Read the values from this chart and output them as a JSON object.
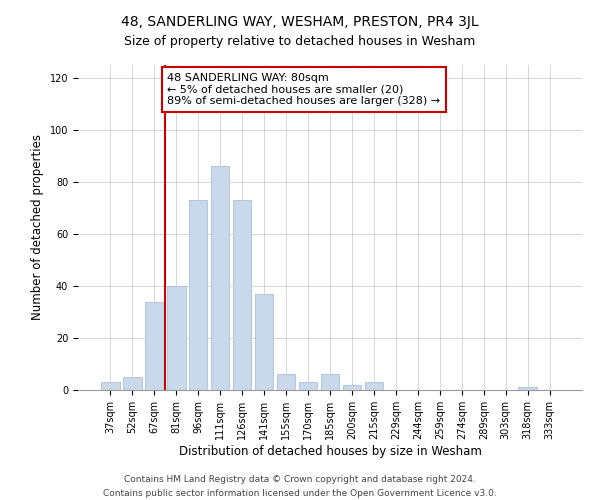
{
  "title": "48, SANDERLING WAY, WESHAM, PRESTON, PR4 3JL",
  "subtitle": "Size of property relative to detached houses in Wesham",
  "xlabel": "Distribution of detached houses by size in Wesham",
  "ylabel": "Number of detached properties",
  "bar_labels": [
    "37sqm",
    "52sqm",
    "67sqm",
    "81sqm",
    "96sqm",
    "111sqm",
    "126sqm",
    "141sqm",
    "155sqm",
    "170sqm",
    "185sqm",
    "200sqm",
    "215sqm",
    "229sqm",
    "244sqm",
    "259sqm",
    "274sqm",
    "289sqm",
    "303sqm",
    "318sqm",
    "333sqm"
  ],
  "bar_values": [
    3,
    5,
    34,
    40,
    73,
    86,
    73,
    37,
    6,
    3,
    6,
    2,
    3,
    0,
    0,
    0,
    0,
    0,
    0,
    1,
    0
  ],
  "bar_color": "#c9d9ec",
  "bar_edge_color": "#aabfda",
  "vline_x_index": 3,
  "vline_color": "#cc0000",
  "annotation_text": "48 SANDERLING WAY: 80sqm\n← 5% of detached houses are smaller (20)\n89% of semi-detached houses are larger (328) →",
  "annotation_box_color": "#ffffff",
  "annotation_box_edge_color": "#cc0000",
  "ylim": [
    0,
    125
  ],
  "yticks": [
    0,
    20,
    40,
    60,
    80,
    100,
    120
  ],
  "footer_line1": "Contains HM Land Registry data © Crown copyright and database right 2024.",
  "footer_line2": "Contains public sector information licensed under the Open Government Licence v3.0.",
  "background_color": "#ffffff",
  "grid_color": "#d0d0d0",
  "title_fontsize": 10,
  "subtitle_fontsize": 9,
  "axis_label_fontsize": 8.5,
  "tick_fontsize": 7,
  "annotation_fontsize": 8,
  "footer_fontsize": 6.5
}
